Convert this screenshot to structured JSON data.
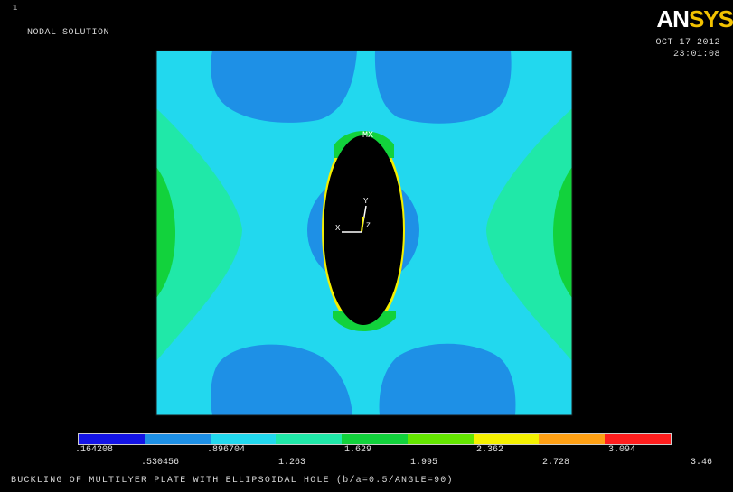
{
  "viewport": {
    "window_number": "1",
    "plot_type": "NODAL SOLUTION",
    "brand_an": "AN",
    "brand_sys": "SYS",
    "date": "OCT 17 2012",
    "time": "23:01:08",
    "triad": {
      "x_label": "X",
      "y_label": "Y",
      "z_label": "Z"
    },
    "hole_label": "MX"
  },
  "legend": {
    "colors": [
      "#1414e6",
      "#1e90e6",
      "#22d8ee",
      "#20e8a8",
      "#12d23c",
      "#64e600",
      "#f4f000",
      "#ffa014",
      "#ff1e1e"
    ],
    "upper_labels": [
      ".164208",
      ".896704",
      "1.629",
      "2.362",
      "3.094"
    ],
    "lower_labels": [
      ".530456",
      "1.263",
      "1.995",
      "2.728",
      "3.46"
    ]
  },
  "footer": {
    "title": "BUCKLING OF MULTILYER PLATE WITH ELLIPSOIDAL HOLE  (b/a=0.5/ANGLE=90)"
  },
  "colors": {
    "background": "#000000",
    "plate_main": "#22d8ee",
    "low_zone": "#1e90e6",
    "mid_zone": "#20e8a8",
    "high_zone": "#12d23c",
    "hole": "#000000"
  }
}
